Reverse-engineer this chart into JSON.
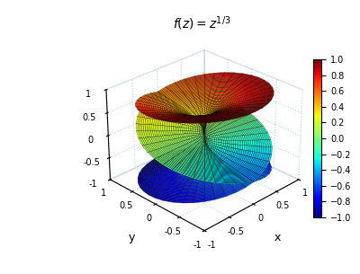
{
  "title": "f(z) = z^{1/3}",
  "colormap": "jet",
  "n_r": 40,
  "n_theta_per_sheet": 40,
  "r_max": 1.0,
  "n_sheets": 3,
  "elev": 28,
  "azim": -135,
  "background_color": "white",
  "cbar_ticks": [
    -1,
    -0.8,
    -0.6,
    -0.4,
    -0.2,
    0,
    0.2,
    0.4,
    0.6,
    0.8,
    1
  ],
  "xlabel": "x",
  "ylabel": "y",
  "xlim": [
    -1,
    1
  ],
  "ylim": [
    -1,
    1
  ],
  "zlim": [
    -1,
    1
  ],
  "xticks": [
    -1,
    -0.5,
    0,
    0.5,
    1
  ],
  "yticks": [
    -1,
    -0.5,
    0,
    0.5,
    1
  ],
  "zticks": [
    -1,
    -0.5,
    0,
    0.5,
    1
  ],
  "pane_color": [
    0.93,
    0.93,
    0.93,
    0.0
  ],
  "grid_color": "lightblue",
  "edgecolor": "black",
  "linewidth": 0.2,
  "title_fontsize": 10,
  "tick_fontsize": 7,
  "label_fontsize": 9
}
